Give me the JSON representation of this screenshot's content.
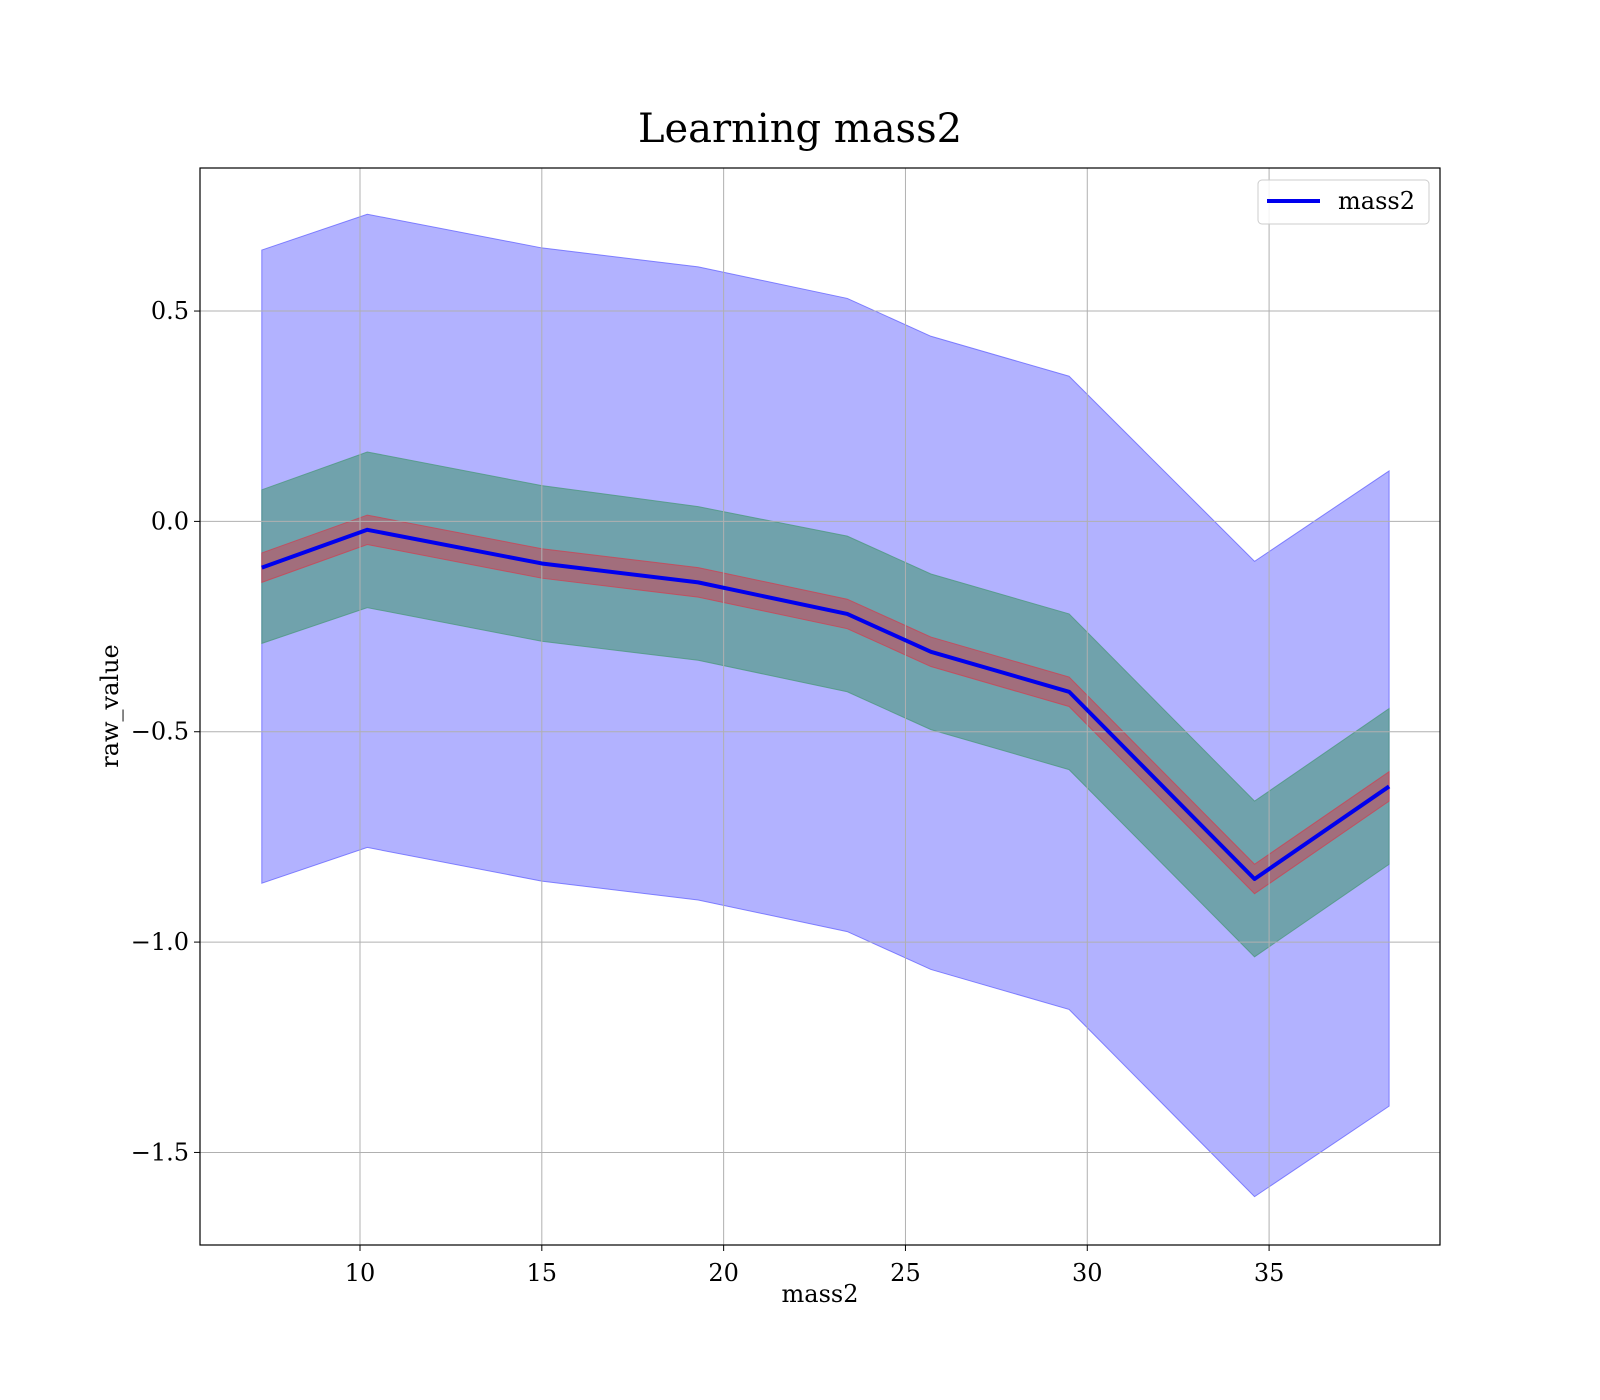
{
  "chart_data": {
    "type": "line",
    "title": "Learning mass2",
    "xlabel": "mass2",
    "ylabel": "raw_value",
    "xlim": [
      5.6,
      39.7
    ],
    "ylim": [
      -1.72,
      0.84
    ],
    "xticks": [
      10,
      15,
      20,
      25,
      30,
      35
    ],
    "xtick_labels": [
      "10",
      "15",
      "20",
      "25",
      "30",
      "35"
    ],
    "yticks": [
      0.5,
      0.0,
      -0.5,
      -1.0,
      -1.5
    ],
    "ytick_labels": [
      "0.5",
      "0.0",
      "−0.5",
      "−1.0",
      "−1.5"
    ],
    "grid": true,
    "legend": {
      "position": "top-right",
      "entries": [
        "mass2"
      ]
    },
    "x": [
      7.3,
      10.2,
      15.0,
      19.3,
      23.4,
      25.7,
      29.5,
      34.6,
      38.3
    ],
    "series": [
      {
        "name": "mass2",
        "values": [
          -0.11,
          -0.02,
          -0.1,
          -0.145,
          -0.22,
          -0.31,
          -0.405,
          -0.85,
          -0.63
        ]
      }
    ],
    "bands": [
      {
        "fill": "#6666ff",
        "opacity": 0.5,
        "upper": [
          0.645,
          0.73,
          0.65,
          0.605,
          0.53,
          0.44,
          0.345,
          -0.095,
          0.12
        ],
        "lower": [
          -0.86,
          -0.775,
          -0.855,
          -0.9,
          -0.975,
          -1.065,
          -1.16,
          -1.605,
          -1.39
        ]
      },
      {
        "fill": "#4d9980",
        "opacity": 0.65,
        "upper": [
          0.075,
          0.165,
          0.085,
          0.035,
          -0.035,
          -0.125,
          -0.22,
          -0.665,
          -0.445
        ],
        "lower": [
          -0.29,
          -0.205,
          -0.285,
          -0.33,
          -0.405,
          -0.495,
          -0.59,
          -1.035,
          -0.815
        ]
      },
      {
        "fill": "#cc4455",
        "opacity": 0.55,
        "upper": [
          -0.075,
          0.015,
          -0.065,
          -0.11,
          -0.185,
          -0.275,
          -0.37,
          -0.815,
          -0.595
        ],
        "lower": [
          -0.145,
          -0.055,
          -0.135,
          -0.18,
          -0.255,
          -0.345,
          -0.44,
          -0.885,
          -0.665
        ]
      }
    ],
    "colors": {
      "line": "#0000ee",
      "grid": "#b0b0b0",
      "axes": "#000000"
    }
  }
}
